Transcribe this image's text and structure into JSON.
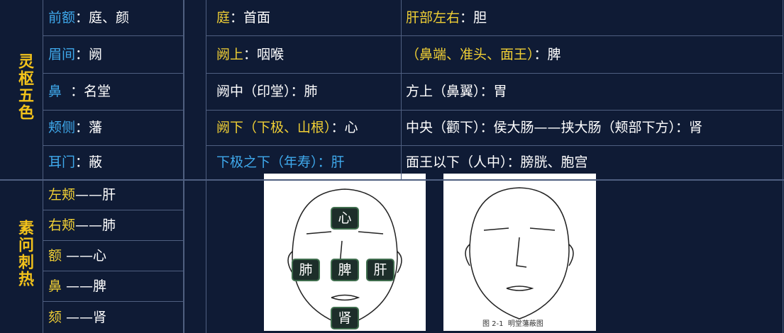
{
  "left_sections": [
    {
      "title": "灵枢五色",
      "rows": [
        {
          "key": "前额",
          "value": "：庭、颜"
        },
        {
          "key": "眉间",
          "value": "：阙"
        },
        {
          "key": "鼻",
          "value": "  ：名堂"
        },
        {
          "key": "颊侧",
          "value": "：藩"
        },
        {
          "key": "耳门",
          "value": "：蔽"
        }
      ]
    },
    {
      "title": "素问刺热",
      "rows": [
        {
          "key": "左颊",
          "value": "——肝"
        },
        {
          "key": "右颊",
          "value": "——肺"
        },
        {
          "key": "额",
          "value": " ——心"
        },
        {
          "key": "鼻",
          "value": " ——脾"
        },
        {
          "key": "颏",
          "value": " ——肾"
        }
      ]
    }
  ],
  "right_rows": [
    [
      {
        "key": "庭",
        "value": "：首面"
      },
      {
        "key": "肝部左右",
        "value": "：胆"
      }
    ],
    [
      {
        "key": "阙上",
        "value": "：咽喉"
      },
      {
        "key": "（鼻端、准头、面王）",
        "value": "：脾"
      }
    ],
    [
      {
        "key": "阙中（印堂）",
        "value": "：肺"
      },
      {
        "key": "方上（鼻翼）",
        "value": "：胃"
      }
    ],
    [
      {
        "key": "阙下（下极、山根）",
        "value": "：心"
      },
      {
        "key": "中央（颧下）",
        "value": "：侯大肠——挟大肠（颊部下方）：肾"
      }
    ],
    [
      {
        "key": "下极之下（年寿）",
        "value": "：肝"
      },
      {
        "key": "面王以下（人中）",
        "value": "：膀胱、胞宫"
      }
    ]
  ],
  "figure": {
    "labels": [
      "心",
      "肺",
      "脾",
      "肝",
      "肾"
    ],
    "caption": "图 2-1  明堂藩蔽图"
  }
}
